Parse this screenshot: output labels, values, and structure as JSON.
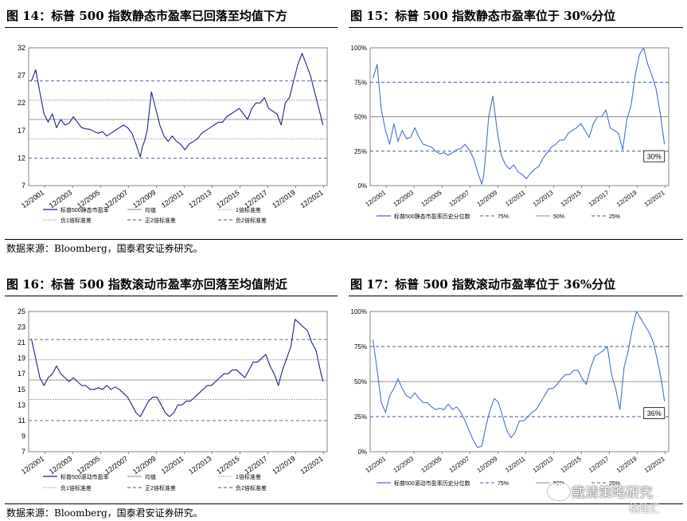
{
  "figures": [
    {
      "title": "图 14：标普 500 指数静态市盈率已回落至均值下方"
    },
    {
      "title": "图 15：标普 500 指数静态市盈率位于 30%分位"
    },
    {
      "title": "图 16：标普 500 指数滚动市盈率亦回落至均值附近"
    },
    {
      "title": "图 17：标普 500 指数滚动市盈率位于 36%分位"
    }
  ],
  "source_note": "数据来源：Bloomberg，国泰君安证券研究。",
  "watermark": {
    "text": "戴清策略研究",
    "sub": "格隆汇"
  },
  "chart_data": [
    {
      "type": "line",
      "x_ticks": [
        "12/2001",
        "12/2003",
        "12/2005",
        "12/2007",
        "12/2009",
        "12/2011",
        "12/2013",
        "12/2015",
        "12/2017",
        "12/2019",
        "12/2021"
      ],
      "ylim": [
        7,
        32
      ],
      "y_ticks": [
        "7",
        "12",
        "17",
        "22",
        "27",
        "32"
      ],
      "series": [
        {
          "name": "标普500静态市盈率",
          "color": "#1a237e",
          "x": [
            2001.0,
            2001.3,
            2001.6,
            2001.9,
            2002.2,
            2002.5,
            2002.8,
            2003.1,
            2003.4,
            2003.7,
            2004.0,
            2004.3,
            2004.6,
            2004.9,
            2005.2,
            2005.5,
            2005.8,
            2006.1,
            2006.4,
            2006.7,
            2007.0,
            2007.3,
            2007.6,
            2007.9,
            2008.2,
            2008.5,
            2008.8,
            2008.95,
            2009.1,
            2009.3,
            2009.6,
            2009.9,
            2010.2,
            2010.5,
            2010.8,
            2011.1,
            2011.4,
            2011.7,
            2012.0,
            2012.3,
            2012.6,
            2012.9,
            2013.2,
            2013.5,
            2013.8,
            2014.1,
            2014.4,
            2014.7,
            2015.0,
            2015.3,
            2015.6,
            2015.9,
            2016.2,
            2016.5,
            2016.8,
            2017.1,
            2017.4,
            2017.7,
            2018.0,
            2018.3,
            2018.6,
            2018.9,
            2019.2,
            2019.5,
            2019.8,
            2020.1,
            2020.4,
            2020.7,
            2021.0,
            2021.3,
            2021.6,
            2021.9
          ],
          "y": [
            26,
            28,
            24,
            20,
            18.5,
            20,
            17.5,
            19,
            18,
            18.3,
            19.5,
            18.5,
            17.5,
            17.3,
            17.2,
            16.8,
            16.5,
            16.8,
            16,
            16.5,
            17,
            17.5,
            18,
            17.5,
            16.5,
            14.5,
            12.2,
            14,
            15,
            17,
            24,
            21,
            18,
            16,
            15,
            16,
            15,
            14.5,
            13.5,
            14.5,
            15,
            15.5,
            16.5,
            17,
            17.5,
            18,
            18.5,
            18.5,
            19.5,
            20,
            20.5,
            21,
            20,
            19,
            21,
            22,
            22,
            23,
            21,
            20.5,
            20,
            18,
            22,
            23,
            26,
            29,
            31,
            29,
            27,
            24,
            21,
            18
          ]
        },
        {
          "name": "均值",
          "color": "#8c8c8c",
          "constant": 19.0
        },
        {
          "name": "1倍标准差",
          "color": "#8c8c8c",
          "constant": 22.5
        },
        {
          "name": "负1倍标准差",
          "color": "#8c8c8c",
          "constant": 15.5
        },
        {
          "name": "正2倍标准差",
          "color": "#3a5a9a",
          "constant": 26.0
        },
        {
          "name": "负2倍标准差",
          "color": "#3a5a9a",
          "constant": 12.0
        }
      ]
    },
    {
      "type": "line",
      "x_ticks": [
        "12/2001",
        "12/2003",
        "12/2005",
        "12/2007",
        "12/2009",
        "12/2011",
        "12/2013",
        "12/2015",
        "12/2017",
        "12/2019",
        "12/2021"
      ],
      "ylim": [
        0,
        100
      ],
      "y_ticks": [
        "0%",
        "25%",
        "50%",
        "75%",
        "100%"
      ],
      "y_tick_values": [
        0,
        25,
        50,
        75,
        100
      ],
      "annotation": "30%",
      "series": [
        {
          "name": "标普500静态市盈率历史分位数",
          "color": "#4472c4",
          "x": [
            2001.0,
            2001.3,
            2001.6,
            2001.9,
            2002.2,
            2002.5,
            2002.8,
            2003.1,
            2003.4,
            2003.7,
            2004.0,
            2004.3,
            2004.6,
            2004.9,
            2005.2,
            2005.5,
            2005.8,
            2006.1,
            2006.4,
            2006.7,
            2007.0,
            2007.3,
            2007.6,
            2007.9,
            2008.2,
            2008.5,
            2008.8,
            2008.95,
            2009.1,
            2009.3,
            2009.6,
            2009.9,
            2010.2,
            2010.5,
            2010.8,
            2011.1,
            2011.4,
            2011.7,
            2012.0,
            2012.3,
            2012.6,
            2012.9,
            2013.2,
            2013.5,
            2013.8,
            2014.1,
            2014.4,
            2014.7,
            2015.0,
            2015.3,
            2015.6,
            2015.9,
            2016.2,
            2016.5,
            2016.8,
            2017.1,
            2017.4,
            2017.7,
            2018.0,
            2018.3,
            2018.6,
            2018.9,
            2019.2,
            2019.5,
            2019.8,
            2020.1,
            2020.4,
            2020.7,
            2021.0,
            2021.3,
            2021.6,
            2021.9
          ],
          "y": [
            78,
            88,
            55,
            40,
            30,
            45,
            32,
            40,
            34,
            35,
            42,
            35,
            30,
            29,
            28,
            25,
            23,
            24,
            22,
            24,
            26,
            27,
            30,
            26,
            20,
            10,
            1,
            8,
            25,
            50,
            65,
            40,
            22,
            15,
            12,
            15,
            10,
            8,
            5,
            9,
            12,
            14,
            20,
            24,
            28,
            30,
            33,
            33,
            38,
            40,
            42,
            45,
            40,
            35,
            45,
            50,
            50,
            55,
            42,
            40,
            38,
            26,
            48,
            58,
            80,
            95,
            100,
            88,
            80,
            70,
            52,
            30
          ]
        },
        {
          "name": "75%",
          "color": "#3a5a9a",
          "constant": 75
        },
        {
          "name": "50%",
          "color": "#8c8c8c",
          "constant": 50
        },
        {
          "name": "25%",
          "color": "#3a5a9a",
          "constant": 25
        }
      ]
    },
    {
      "type": "line",
      "x_ticks": [
        "12/2001",
        "12/2003",
        "12/2005",
        "12/2007",
        "12/2009",
        "12/2011",
        "12/2013",
        "12/2015",
        "12/2017",
        "12/2019",
        "12/2021"
      ],
      "ylim": [
        7,
        25
      ],
      "y_ticks": [
        "7",
        "9",
        "11",
        "13",
        "15",
        "17",
        "19",
        "21",
        "23",
        "25"
      ],
      "series": [
        {
          "name": "标普500滚动市盈率",
          "color": "#1a237e",
          "x": [
            2001.0,
            2001.3,
            2001.6,
            2001.9,
            2002.2,
            2002.5,
            2002.8,
            2003.1,
            2003.4,
            2003.7,
            2004.0,
            2004.3,
            2004.6,
            2004.9,
            2005.2,
            2005.5,
            2005.8,
            2006.1,
            2006.4,
            2006.7,
            2007.0,
            2007.3,
            2007.6,
            2007.9,
            2008.2,
            2008.5,
            2008.8,
            2009.1,
            2009.4,
            2009.7,
            2010.0,
            2010.3,
            2010.6,
            2010.9,
            2011.2,
            2011.5,
            2011.8,
            2012.1,
            2012.4,
            2012.7,
            2013.0,
            2013.3,
            2013.6,
            2013.9,
            2014.2,
            2014.5,
            2014.8,
            2015.1,
            2015.4,
            2015.7,
            2016.0,
            2016.3,
            2016.6,
            2016.9,
            2017.2,
            2017.5,
            2017.8,
            2018.1,
            2018.4,
            2018.7,
            2019.0,
            2019.3,
            2019.6,
            2019.9,
            2020.2,
            2020.5,
            2020.8,
            2021.1,
            2021.4,
            2021.7,
            2021.9
          ],
          "y": [
            21.5,
            19,
            16.5,
            15.5,
            16.5,
            17,
            18,
            17,
            16.5,
            16,
            16.5,
            16,
            15.5,
            15.5,
            15,
            15,
            15.2,
            15,
            15.5,
            15,
            15.3,
            15,
            14.5,
            14,
            13,
            12,
            11.5,
            12.5,
            13.5,
            14,
            14,
            13,
            12,
            11.5,
            12,
            13,
            13,
            13.5,
            13.5,
            14,
            14.5,
            15,
            15.5,
            15.5,
            16,
            16.5,
            17,
            17,
            17.5,
            17.5,
            17,
            16.5,
            17.5,
            18.5,
            18.5,
            19,
            19.5,
            18,
            17,
            15.5,
            17.5,
            19,
            20.5,
            24,
            23.5,
            23,
            22.5,
            21,
            20,
            17.5,
            16
          ]
        },
        {
          "name": "均值",
          "color": "#8c8c8c",
          "constant": 16.2
        },
        {
          "name": "1倍标准差",
          "color": "#8c8c8c",
          "constant": 18.8
        },
        {
          "name": "负1倍标准差",
          "color": "#8c8c8c",
          "constant": 13.7
        },
        {
          "name": "正2倍标准差",
          "color": "#3a5a9a",
          "constant": 21.4
        },
        {
          "name": "负2倍标准差",
          "color": "#3a5a9a",
          "constant": 11.0
        }
      ]
    },
    {
      "type": "line",
      "x_ticks": [
        "12/2001",
        "12/2003",
        "12/2005",
        "12/2007",
        "12/2009",
        "12/2011",
        "12/2013",
        "12/2015",
        "12/2017",
        "12/2019",
        "12/2021"
      ],
      "ylim": [
        0,
        100
      ],
      "y_ticks": [
        "0%",
        "25%",
        "50%",
        "75%",
        "100%"
      ],
      "y_tick_values": [
        0,
        25,
        50,
        75,
        100
      ],
      "annotation": "36%",
      "series": [
        {
          "name": "标普500滚动市盈率历史分位数",
          "color": "#4472c4",
          "x": [
            2001.0,
            2001.3,
            2001.6,
            2001.9,
            2002.2,
            2002.5,
            2002.8,
            2003.1,
            2003.4,
            2003.7,
            2004.0,
            2004.3,
            2004.6,
            2004.9,
            2005.2,
            2005.5,
            2005.8,
            2006.1,
            2006.4,
            2006.7,
            2007.0,
            2007.3,
            2007.6,
            2007.9,
            2008.2,
            2008.5,
            2008.8,
            2009.1,
            2009.4,
            2009.7,
            2010.0,
            2010.3,
            2010.6,
            2010.9,
            2011.2,
            2011.5,
            2011.8,
            2012.1,
            2012.4,
            2012.7,
            2013.0,
            2013.3,
            2013.6,
            2013.9,
            2014.2,
            2014.5,
            2014.8,
            2015.1,
            2015.4,
            2015.7,
            2016.0,
            2016.3,
            2016.6,
            2016.9,
            2017.2,
            2017.5,
            2017.8,
            2018.1,
            2018.4,
            2018.7,
            2019.0,
            2019.3,
            2019.6,
            2019.9,
            2020.2,
            2020.5,
            2020.8,
            2021.1,
            2021.4,
            2021.7,
            2021.9
          ],
          "y": [
            80,
            58,
            35,
            28,
            40,
            45,
            52,
            45,
            40,
            38,
            42,
            38,
            35,
            35,
            32,
            30,
            31,
            30,
            34,
            30,
            32,
            28,
            22,
            15,
            8,
            3,
            4,
            18,
            30,
            38,
            35,
            25,
            15,
            10,
            14,
            22,
            22,
            25,
            28,
            30,
            35,
            40,
            45,
            45,
            48,
            52,
            55,
            55,
            58,
            58,
            52,
            48,
            60,
            68,
            70,
            72,
            75,
            55,
            45,
            30,
            60,
            72,
            88,
            100,
            95,
            90,
            85,
            78,
            65,
            50,
            36
          ]
        },
        {
          "name": "75%",
          "color": "#3a5a9a",
          "constant": 75
        },
        {
          "name": "50%",
          "color": "#8c8c8c",
          "constant": 50
        },
        {
          "name": "25%",
          "color": "#3a5a9a",
          "constant": 25
        }
      ]
    }
  ]
}
